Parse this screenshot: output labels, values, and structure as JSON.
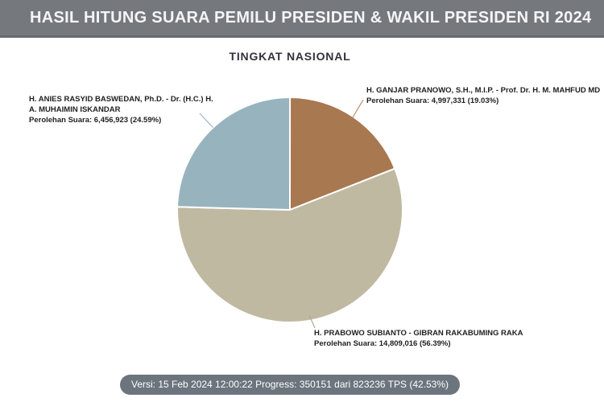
{
  "header": {
    "title": "HASIL HITUNG SUARA PEMILU PRESIDEN & WAKIL PRESIDEN RI 2024"
  },
  "chart": {
    "title": "TINGKAT NASIONAL"
  },
  "chart_data": {
    "type": "pie",
    "title": "TINGKAT NASIONAL",
    "direction": "clockwise",
    "start_angle_deg": 0,
    "series": [
      {
        "id": "ganjar-mahfud",
        "name": "H. GANJAR PRANOWO, S.H., M.I.P. - Prof. Dr. H. M. MAHFUD MD",
        "votes": 4997331,
        "percent": 19.03,
        "color": "#A87850"
      },
      {
        "id": "prabowo-gibran",
        "name": "H. PRABOWO SUBIANTO - GIBRAN RAKABUMING RAKA",
        "votes": 14809016,
        "percent": 56.39,
        "color": "#C0B9A2"
      },
      {
        "id": "anies-muhaimin",
        "name": "H. ANIES RASYID BASWEDAN, Ph.D. - Dr. (H.C.) H. A. MUHAIMIN ISKANDAR",
        "votes": 6456923,
        "percent": 24.59,
        "color": "#97B4BE"
      }
    ]
  },
  "labels": {
    "anies": {
      "line1": "H. ANIES RASYID BASWEDAN, Ph.D. - Dr. (H.C.) H.",
      "line2": "A. MUHAIMIN ISKANDAR",
      "votes_line": "Perolehan Suara: 6,456,923 (24.59%)"
    },
    "ganjar": {
      "line1": "H. GANJAR PRANOWO, S.H., M.I.P. - Prof. Dr. H. M. MAHFUD MD",
      "votes_line": "Perolehan Suara: 4,997,331 (19.03%)"
    },
    "prabowo": {
      "line1": "H. PRABOWO SUBIANTO - GIBRAN RAKABUMING RAKA",
      "votes_line": "Perolehan Suara: 14,809,016 (56.39%)"
    }
  },
  "footer": {
    "status": "Versi: 15 Feb 2024 12:00:22 Progress: 350151 dari 823236 TPS (42.53%)"
  }
}
